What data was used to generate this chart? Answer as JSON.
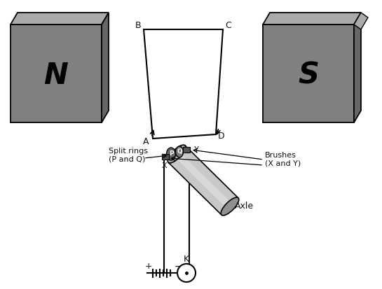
{
  "magnet_color": "#808080",
  "magnet_top": "#aaaaaa",
  "magnet_side": "#666666",
  "coil_fill": "#ffffff",
  "axle_color": "#b0b0b0",
  "axle_dark": "#888888",
  "ring_color": "#777777",
  "brush_color": "#555555",
  "lc": "#111111",
  "N_label": "N",
  "S_label": "S",
  "split_rings_label": "Split rings\n(P and Q)",
  "brushes_label": "Brushes\n(X and Y)",
  "axle_label": "Axle",
  "K_label": "K"
}
